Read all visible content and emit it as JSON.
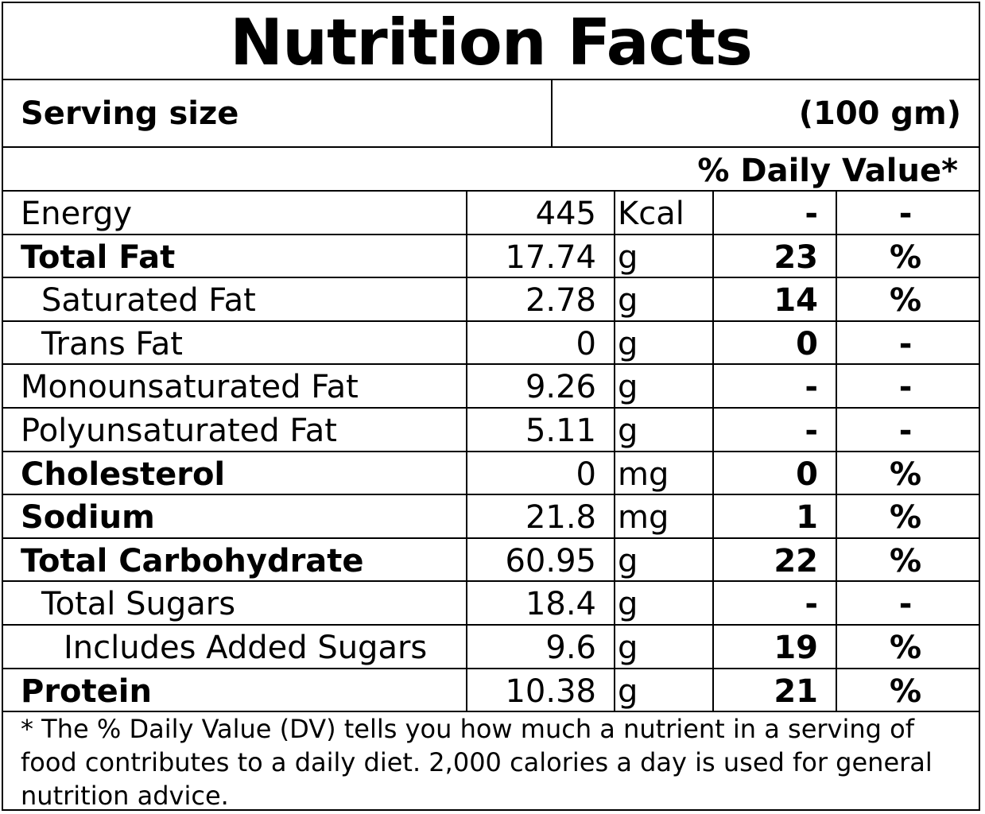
{
  "title": "Nutrition Facts",
  "serving": {
    "label": "Serving size",
    "value": "(100 gm)"
  },
  "dv_header": "% Daily Value*",
  "rows": [
    {
      "name": "Energy",
      "amount": "445",
      "unit": "Kcal",
      "dv": "-",
      "pct": "-"
    },
    {
      "name": "Total Fat",
      "amount": "17.74",
      "unit": "g",
      "dv": "23",
      "pct": "%"
    },
    {
      "name": "Saturated Fat",
      "amount": "2.78",
      "unit": "g",
      "dv": "14",
      "pct": "%"
    },
    {
      "name": "Trans Fat",
      "amount": "0",
      "unit": "g",
      "dv": "0",
      "pct": "-"
    },
    {
      "name": "Monounsaturated Fat",
      "amount": "9.26",
      "unit": "g",
      "dv": "-",
      "pct": "-"
    },
    {
      "name": "Polyunsaturated Fat",
      "amount": "5.11",
      "unit": "g",
      "dv": "-",
      "pct": "-"
    },
    {
      "name": "Cholesterol",
      "amount": "0",
      "unit": "mg",
      "dv": "0",
      "pct": "%"
    },
    {
      "name": "Sodium",
      "amount": "21.8",
      "unit": "mg",
      "dv": "1",
      "pct": "%"
    },
    {
      "name": "Total Carbohydrate",
      "amount": "60.95",
      "unit": "g",
      "dv": "22",
      "pct": "%"
    },
    {
      "name": "Total Sugars",
      "amount": "18.4",
      "unit": "g",
      "dv": "-",
      "pct": "-"
    },
    {
      "name": "Includes Added Sugars",
      "amount": "9.6",
      "unit": "g",
      "dv": "19",
      "pct": "%"
    },
    {
      "name": "Protein",
      "amount": "10.38",
      "unit": "g",
      "dv": "21",
      "pct": "%"
    }
  ],
  "footnote": "* The % Daily Value (DV) tells you how much a nutrient in a serving of food contributes to a daily diet. 2,000 calories a day is used for general nutrition advice."
}
